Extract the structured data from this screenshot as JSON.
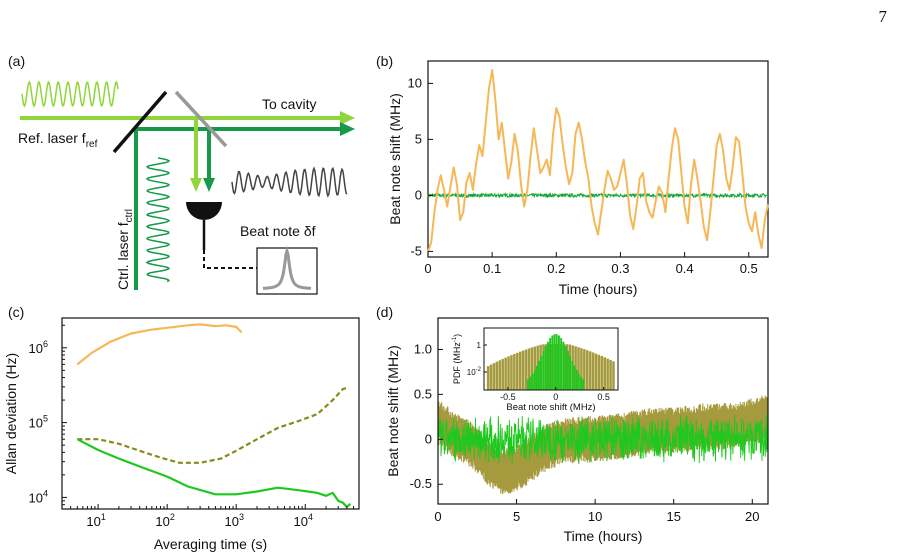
{
  "page_number": "7",
  "colors": {
    "orange": "#f6b857",
    "green": "#1aa83a",
    "light_green": "#8fd63a",
    "dark_green": "#169a4a",
    "olive": "#8a8a1c",
    "olive_fill": "#a69a3e",
    "bright_green": "#1ec81e",
    "gray": "#999999",
    "black": "#111111"
  },
  "panel_a": {
    "label": "(a)",
    "to_cavity": "To cavity",
    "ref_laser": "Ref. laser f",
    "ref_sub": "ref",
    "ctrl_laser": "Ctrl. laser f",
    "ctrl_sub": "ctrl",
    "beat_note": "Beat note δf",
    "icons": [
      "sine-wave-icon",
      "beam-splitter-icon",
      "mirror-icon",
      "photodetector-icon",
      "spectrum-peak-icon"
    ]
  },
  "chart_data": [
    {
      "panel": "(b)",
      "type": "line",
      "xlabel": "Time (hours)",
      "ylabel": "Beat note shift (MHz)",
      "xlim": [
        0,
        0.53
      ],
      "ylim": [
        -5.5,
        12
      ],
      "xticks": [
        "0",
        "0.1",
        "0.2",
        "0.3",
        "0.4",
        "0.5"
      ],
      "yticks": [
        "-5",
        "0",
        "5",
        "10"
      ],
      "series": [
        {
          "color": "#f6b857",
          "x": [
            0,
            0.005,
            0.01,
            0.015,
            0.02,
            0.025,
            0.03,
            0.035,
            0.04,
            0.045,
            0.05,
            0.055,
            0.06,
            0.065,
            0.07,
            0.075,
            0.08,
            0.085,
            0.09,
            0.095,
            0.1,
            0.105,
            0.11,
            0.115,
            0.12,
            0.125,
            0.13,
            0.135,
            0.14,
            0.145,
            0.15,
            0.155,
            0.16,
            0.165,
            0.17,
            0.175,
            0.18,
            0.185,
            0.19,
            0.195,
            0.2,
            0.205,
            0.21,
            0.215,
            0.22,
            0.225,
            0.23,
            0.235,
            0.24,
            0.245,
            0.25,
            0.255,
            0.26,
            0.265,
            0.27,
            0.275,
            0.28,
            0.285,
            0.29,
            0.295,
            0.3,
            0.305,
            0.31,
            0.315,
            0.32,
            0.325,
            0.33,
            0.335,
            0.34,
            0.345,
            0.35,
            0.355,
            0.36,
            0.365,
            0.37,
            0.375,
            0.38,
            0.385,
            0.39,
            0.395,
            0.4,
            0.405,
            0.41,
            0.415,
            0.42,
            0.425,
            0.43,
            0.435,
            0.44,
            0.445,
            0.45,
            0.455,
            0.46,
            0.465,
            0.47,
            0.475,
            0.48,
            0.485,
            0.49,
            0.495,
            0.5,
            0.505,
            0.51,
            0.515,
            0.52,
            0.525,
            0.53
          ],
          "y": [
            -5,
            -4.2,
            -1.5,
            0.5,
            1.8,
            0.5,
            -1,
            0.8,
            2.5,
            1,
            -2.2,
            -1.5,
            1.2,
            2,
            0.5,
            2.8,
            4.5,
            3.5,
            6.5,
            9.5,
            11.2,
            8.5,
            5,
            6.5,
            4,
            1.5,
            3,
            5.5,
            4,
            1,
            -1,
            0.5,
            3.5,
            6,
            4,
            2,
            2.5,
            3.2,
            1.8,
            5.5,
            7.8,
            7,
            4.5,
            2.5,
            1,
            2,
            5.5,
            6.5,
            5,
            3,
            1.5,
            -1,
            -2.5,
            -3.5,
            -1.5,
            0.5,
            2.2,
            1.5,
            0.5,
            0.8,
            2,
            3.2,
            1,
            -1.8,
            -3,
            -1,
            1.5,
            2,
            -0.5,
            -1.5,
            -2,
            -0.5,
            0.8,
            0.2,
            -1.5,
            1.5,
            4.2,
            6,
            5,
            2,
            -1,
            -2.5,
            1,
            3.2,
            1.5,
            -0.5,
            -2.8,
            -4,
            -1.5,
            1.5,
            4.5,
            5.5,
            4,
            1.5,
            0.5,
            2.5,
            5.2,
            4.8,
            2,
            -1,
            -2.5,
            -3.2,
            -1.5,
            -3.5,
            -4.7,
            -2.2,
            -0.8
          ]
        },
        {
          "color": "#1aa83a",
          "constant": 0,
          "noise": 0.15
        }
      ]
    },
    {
      "panel": "(c)",
      "type": "line",
      "xlabel": "Averaging time (s)",
      "ylabel": "Allan deviation (Hz)",
      "xscale": "log",
      "yscale": "log",
      "xlim": [
        3,
        60000
      ],
      "ylim": [
        7000,
        2500000
      ],
      "xticks": [
        {
          "value": 10,
          "base": "10",
          "exp": "1"
        },
        {
          "value": 100,
          "base": "10",
          "exp": "2"
        },
        {
          "value": 1000,
          "base": "10",
          "exp": "3"
        },
        {
          "value": 10000,
          "base": "10",
          "exp": "4"
        }
      ],
      "yticks": [
        {
          "value": 10000,
          "base": "10",
          "exp": "4"
        },
        {
          "value": 100000,
          "base": "10",
          "exp": "5"
        },
        {
          "value": 1000000,
          "base": "10",
          "exp": "6"
        }
      ],
      "series": [
        {
          "color": "#f6b857",
          "style": "solid",
          "x": [
            5,
            8,
            15,
            30,
            60,
            100,
            200,
            300,
            500,
            700,
            1000,
            1200
          ],
          "y": [
            600000,
            850000,
            1200000,
            1550000,
            1750000,
            1850000,
            2000000,
            2050000,
            1950000,
            2000000,
            1900000,
            1600000
          ]
        },
        {
          "color": "#8a8a1c",
          "style": "dashed",
          "x": [
            5,
            10,
            20,
            40,
            80,
            150,
            300,
            600,
            1000,
            2000,
            4000,
            8000,
            15000,
            25000,
            35000,
            40000
          ],
          "y": [
            60000,
            60000,
            52000,
            42000,
            34000,
            29000,
            29000,
            33000,
            42000,
            60000,
            85000,
            105000,
            130000,
            200000,
            280000,
            290000
          ]
        },
        {
          "color": "#1ec81e",
          "style": "solid",
          "x": [
            5,
            10,
            20,
            50,
            100,
            200,
            500,
            1000,
            2000,
            4000,
            8000,
            15000,
            20000,
            25000,
            30000,
            35000,
            40000,
            45000
          ],
          "y": [
            60000,
            43000,
            33000,
            24000,
            19000,
            14000,
            11000,
            11000,
            12000,
            13500,
            12500,
            11500,
            10500,
            11500,
            9000,
            8500,
            7500,
            8200
          ]
        }
      ]
    },
    {
      "panel": "(d)",
      "type": "line",
      "xlabel": "Time (hours)",
      "ylabel": "Beat note shift (MHz)",
      "xlim": [
        0,
        21
      ],
      "ylim": [
        -0.72,
        1.35
      ],
      "xticks": [
        "0",
        "5",
        "10",
        "15",
        "20"
      ],
      "yticks": [
        "-0.5",
        "0",
        "0.5",
        "1.0"
      ],
      "series": [
        {
          "color": "#a69a3e",
          "style": "band",
          "x": [
            0,
            1,
            2,
            2.5,
            3,
            3.5,
            4,
            4.5,
            5,
            5.5,
            6,
            6.5,
            7,
            7.5,
            8,
            9,
            10,
            11,
            12,
            13,
            14,
            15,
            16,
            17,
            18,
            19,
            20,
            20.5,
            21
          ],
          "center": [
            0.2,
            0.05,
            -0.05,
            -0.12,
            -0.22,
            -0.3,
            -0.35,
            -0.36,
            -0.32,
            -0.28,
            -0.2,
            -0.15,
            -0.08,
            -0.05,
            -0.02,
            0,
            0,
            0.02,
            0.05,
            0.08,
            0.1,
            0.1,
            0.12,
            0.15,
            0.14,
            0.16,
            0.2,
            0.22,
            0.25
          ],
          "halfwidth": 0.26
        },
        {
          "color": "#1ec81e",
          "style": "noise",
          "center": 0,
          "halfwidth": 0.28
        }
      ],
      "inset": {
        "type": "bar",
        "xlabel": "Beat note shift (MHz)",
        "ylabel": "PDF (MHz",
        "ylabel_sup": "-1",
        "ylabel_end": ")",
        "xlim": [
          -0.75,
          0.65
        ],
        "xticks": [
          "-0.5",
          "0",
          "0.5"
        ],
        "yticks": [
          {
            "base": "1",
            "exp": ""
          },
          {
            "base": "10",
            "exp": "-2"
          }
        ],
        "series": [
          {
            "color": "#a69a3e",
            "bins_from": -0.72,
            "bins_to": 0.62,
            "shape": "broad"
          },
          {
            "color": "#1ec81e",
            "bins_from": -0.3,
            "bins_to": 0.3,
            "shape": "narrow"
          }
        ]
      }
    }
  ]
}
